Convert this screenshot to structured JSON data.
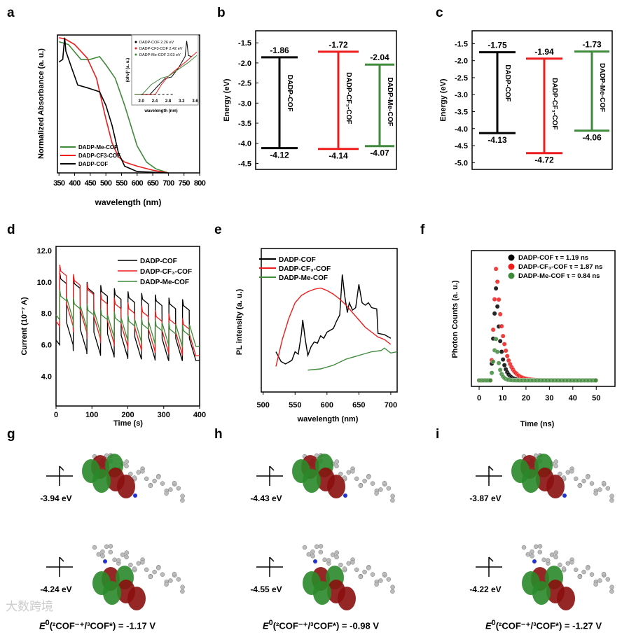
{
  "panels": {
    "a": "a",
    "b": "b",
    "c": "c",
    "d": "d",
    "e": "e",
    "f": "f",
    "g": "g",
    "h": "h",
    "i": "i"
  },
  "watermark": "大数跨境",
  "colors": {
    "black": "#000000",
    "red": "#ee1c1c",
    "green": "#3f8a3b"
  },
  "chart_data": [
    {
      "id": "a",
      "type": "line",
      "xlabel": "wavelength (nm)",
      "ylabel": "Normalized Absorbance (a. u.)",
      "xlim": [
        345,
        800
      ],
      "ylim": [
        0,
        1.02
      ],
      "xticks": [
        350,
        400,
        450,
        500,
        550,
        600,
        650,
        700,
        750,
        800
      ],
      "series": [
        {
          "name": "DADP-Me-COF",
          "color": "#3f8a3b",
          "points": [
            [
              350,
              0.97
            ],
            [
              380,
              0.95
            ],
            [
              420,
              0.84
            ],
            [
              450,
              0.84
            ],
            [
              480,
              0.86
            ],
            [
              500,
              0.8
            ],
            [
              530,
              0.7
            ],
            [
              560,
              0.5
            ],
            [
              580,
              0.35
            ],
            [
              600,
              0.2
            ],
            [
              630,
              0.08
            ],
            [
              660,
              0.03
            ],
            [
              700,
              0
            ]
          ]
        },
        {
          "name": "DADP-CF3-COF",
          "color": "#ee1c1c",
          "points": [
            [
              350,
              1.0
            ],
            [
              370,
              0.99
            ],
            [
              400,
              0.95
            ],
            [
              440,
              0.85
            ],
            [
              470,
              0.7
            ],
            [
              490,
              0.5
            ],
            [
              500,
              0.4
            ],
            [
              520,
              0.22
            ],
            [
              540,
              0.12
            ],
            [
              560,
              0.08
            ],
            [
              600,
              0.05
            ],
            [
              650,
              0.02
            ],
            [
              700,
              0
            ]
          ]
        },
        {
          "name": "DADP-COF",
          "color": "#000000",
          "points": [
            [
              350,
              0.82
            ],
            [
              362,
              0.84
            ],
            [
              368,
              1.0
            ],
            [
              372,
              0.9
            ],
            [
              390,
              0.78
            ],
            [
              410,
              0.65
            ],
            [
              440,
              0.63
            ],
            [
              480,
              0.6
            ],
            [
              500,
              0.5
            ],
            [
              520,
              0.35
            ],
            [
              540,
              0.15
            ],
            [
              560,
              0.05
            ],
            [
              600,
              0.01
            ],
            [
              700,
              0
            ]
          ]
        }
      ],
      "legend": [
        "DADP-Me-COF",
        "DADP-CF3-COF",
        "DADP-COF"
      ],
      "inset": {
        "xlabel": "wavelength (nm)",
        "ylabel": "(αhν)² (a. u.)",
        "xlim": [
          1.8,
          3.65
        ],
        "ylim": [
          0,
          1
        ],
        "xticks": [
          "2.0",
          "2.4",
          "2.8",
          "3.2",
          "3.6"
        ],
        "legend": [
          "DADP-COF 2.26 eV",
          "DADP-CF3-COF 2.42 eV",
          "DADP-Me-COF 2.03 eV"
        ],
        "series": [
          {
            "name": "DADP-COF",
            "color": "#000000",
            "points": [
              [
                1.8,
                0.05
              ],
              [
                2.26,
                0.05
              ],
              [
                2.5,
                0.2
              ],
              [
                2.7,
                0.32
              ],
              [
                2.9,
                0.35
              ],
              [
                3.1,
                0.5
              ],
              [
                3.3,
                0.7
              ],
              [
                3.35,
                0.97
              ],
              [
                3.4,
                0.72
              ],
              [
                3.5,
                0.7
              ]
            ]
          },
          {
            "name": "DADP-CF3-COF",
            "color": "#ee1c1c",
            "points": [
              [
                1.8,
                0.05
              ],
              [
                2.42,
                0.05
              ],
              [
                2.6,
                0.22
              ],
              [
                2.8,
                0.36
              ],
              [
                3.0,
                0.46
              ],
              [
                3.3,
                0.6
              ],
              [
                3.65,
                0.78
              ]
            ]
          },
          {
            "name": "DADP-Me-COF",
            "color": "#3f8a3b",
            "points": [
              [
                1.8,
                0.05
              ],
              [
                2.03,
                0.05
              ],
              [
                2.3,
                0.22
              ],
              [
                2.6,
                0.33
              ],
              [
                2.8,
                0.36
              ],
              [
                3.1,
                0.48
              ],
              [
                3.4,
                0.6
              ],
              [
                3.65,
                0.72
              ]
            ]
          }
        ],
        "extrap": [
          2.03,
          2.26,
          2.42
        ]
      }
    },
    {
      "id": "b",
      "type": "energy-levels",
      "ylabel": "Energy (eV)",
      "ylim": [
        -4.65,
        -1.2
      ],
      "yticks": [
        "-1.5",
        "-2.0",
        "-2.5",
        "-3.0",
        "-3.5",
        "-4.0",
        "-4.5"
      ],
      "levels": [
        {
          "name": "DADP-COF",
          "color": "#000000",
          "top": -1.86,
          "bottom": -4.12,
          "top_label": "-1.86",
          "bottom_label": "-4.12"
        },
        {
          "name": "DADP-CF₃-COF",
          "color": "#ee1c1c",
          "top": -1.72,
          "bottom": -4.14,
          "top_label": "-1.72",
          "bottom_label": "-4.14"
        },
        {
          "name": "DADP-Me-COF",
          "color": "#3f8a3b",
          "top": -2.04,
          "bottom": -4.07,
          "top_label": "-2.04",
          "bottom_label": "-4.07"
        }
      ]
    },
    {
      "id": "c",
      "type": "energy-levels",
      "ylabel": "Energy (eV)",
      "ylim": [
        -5.2,
        -1.12
      ],
      "yticks": [
        "-1.5",
        "-2.0",
        "-2.5",
        "-3.0",
        "-3.5",
        "-4.0",
        "-4.5",
        "-5.0"
      ],
      "levels": [
        {
          "name": "DADP-COF",
          "color": "#000000",
          "top": -1.75,
          "bottom": -4.13,
          "top_label": "-1.75",
          "bottom_label": "-4.13"
        },
        {
          "name": "DADP-CF₃-COF",
          "color": "#ee1c1c",
          "top": -1.94,
          "bottom": -4.72,
          "top_label": "-1.94",
          "bottom_label": "-4.72"
        },
        {
          "name": "DADP-Me-COF",
          "color": "#3f8a3b",
          "top": -1.73,
          "bottom": -4.06,
          "top_label": "-1.73",
          "bottom_label": "-4.06"
        }
      ]
    },
    {
      "id": "d",
      "type": "line",
      "xlabel": "Time (s)",
      "ylabel": "Current (10⁻⁷ A)",
      "xlim": [
        0,
        400
      ],
      "ylim": [
        2.1,
        12.27
      ],
      "xticks": [
        "0",
        "100",
        "200",
        "300",
        "400"
      ],
      "yticks": [
        "4.0",
        "6.0",
        "8.0",
        "10.0",
        "12.0"
      ],
      "cycle_period_s": 38,
      "light_on_s": 19,
      "start_s": 10,
      "series": [
        {
          "name": "DADP-COF",
          "color": "#000000",
          "on": [
            10.2,
            9.9,
            9.6,
            9.4,
            9.2,
            9.0,
            8.9,
            8.8,
            8.6,
            8.5
          ],
          "off": [
            6.0,
            5.6,
            5.4,
            5.3,
            5.2,
            5.1,
            5.1,
            5.0,
            5.0,
            5.0
          ]
        },
        {
          "name": "DADP-CF3-COF",
          "color": "#ee1c1c",
          "on": [
            10.7,
            10.1,
            9.5,
            8.9,
            8.6,
            8.3,
            8.1,
            7.8,
            7.6,
            7.3
          ],
          "off": [
            7.2,
            6.8,
            6.4,
            6.1,
            5.9,
            5.7,
            5.6,
            5.5,
            5.4,
            5.3
          ]
        },
        {
          "name": "DADP-Me-COF",
          "color": "#3f8a3b",
          "on": [
            9.1,
            8.6,
            8.2,
            7.9,
            7.7,
            7.5,
            7.3,
            7.2,
            7.0,
            6.9
          ],
          "off": [
            7.6,
            7.1,
            6.8,
            6.5,
            6.3,
            6.2,
            6.1,
            6.0,
            5.9,
            5.9
          ]
        }
      ],
      "legend": [
        "DADP-COF",
        "DADP-CF₃-COF",
        "DADP-Me-COF"
      ]
    },
    {
      "id": "e",
      "type": "line",
      "xlabel": "wavelength (nm)",
      "ylabel": "PL intensity (a. u.)",
      "xlim": [
        497,
        710
      ],
      "ylim": [
        0,
        1
      ],
      "xticks": [
        "500",
        "550",
        "600",
        "650",
        "700"
      ],
      "series": [
        {
          "name": "DADP-COF",
          "color": "#000000",
          "points": [
            [
              520,
              0.3
            ],
            [
              528,
              0.22
            ],
            [
              535,
              0.2
            ],
            [
              545,
              0.23
            ],
            [
              550,
              0.3
            ],
            [
              555,
              0.28
            ],
            [
              560,
              0.45
            ],
            [
              562,
              0.56
            ],
            [
              566,
              0.4
            ],
            [
              570,
              0.27
            ],
            [
              575,
              0.34
            ],
            [
              580,
              0.38
            ],
            [
              585,
              0.37
            ],
            [
              590,
              0.43
            ],
            [
              595,
              0.41
            ],
            [
              600,
              0.46
            ],
            [
              610,
              0.49
            ],
            [
              615,
              0.55
            ],
            [
              620,
              0.6
            ],
            [
              624,
              0.93
            ],
            [
              628,
              0.75
            ],
            [
              632,
              0.62
            ],
            [
              635,
              0.7
            ],
            [
              640,
              0.64
            ],
            [
              645,
              0.66
            ],
            [
              650,
              0.85
            ],
            [
              655,
              0.7
            ],
            [
              660,
              0.68
            ],
            [
              665,
              0.7
            ],
            [
              670,
              0.66
            ],
            [
              678,
              0.65
            ],
            [
              680,
              0.45
            ],
            [
              690,
              0.44
            ],
            [
              700,
              0.41
            ]
          ]
        },
        {
          "name": "DADP-CF3-COF",
          "color": "#ee1c1c",
          "points": [
            [
              520,
              0.18
            ],
            [
              530,
              0.4
            ],
            [
              540,
              0.57
            ],
            [
              550,
              0.7
            ],
            [
              560,
              0.76
            ],
            [
              570,
              0.79
            ],
            [
              580,
              0.81
            ],
            [
              590,
              0.82
            ],
            [
              600,
              0.8
            ],
            [
              610,
              0.77
            ],
            [
              620,
              0.73
            ],
            [
              630,
              0.68
            ],
            [
              640,
              0.62
            ],
            [
              650,
              0.56
            ],
            [
              660,
              0.5
            ],
            [
              670,
              0.46
            ],
            [
              680,
              0.42
            ],
            [
              690,
              0.4
            ],
            [
              700,
              0.36
            ]
          ]
        },
        {
          "name": "DADP-Me-COF",
          "color": "#3f8a3b",
          "points": [
            [
              570,
              0.15
            ],
            [
              590,
              0.16
            ],
            [
              610,
              0.19
            ],
            [
              630,
              0.24
            ],
            [
              650,
              0.27
            ],
            [
              670,
              0.3
            ],
            [
              685,
              0.31
            ],
            [
              690,
              0.33
            ],
            [
              700,
              0.29
            ],
            [
              710,
              0.3
            ]
          ]
        }
      ],
      "legend": [
        "DADP-COF",
        "DADP-CF₃-COF",
        "DADP-Me-COF"
      ]
    },
    {
      "id": "f",
      "type": "scatter",
      "xlabel": "Time (ns)",
      "ylabel": "Photon Counts (a. u.)",
      "xlim": [
        -3.3,
        58
      ],
      "ylim": [
        0,
        1
      ],
      "xticks": [
        "0",
        "10",
        "20",
        "30",
        "40",
        "50"
      ],
      "series": [
        {
          "name": "DADP-COF",
          "tau": "τ = 1.19 ns",
          "color": "#000000",
          "peak": 0.8,
          "peak_t": 7.3,
          "decay_ns": 1.9
        },
        {
          "name": "DADP-CF3-COF",
          "tau": "τ = 1.87 ns",
          "color": "#ee1c1c",
          "peak": 0.97,
          "peak_t": 7.3,
          "decay_ns": 3.0
        },
        {
          "name": "DADP-Me-COF",
          "tau": "τ = 0.84 ns",
          "color": "#3f8a3b",
          "peak": 0.36,
          "peak_t": 7.3,
          "decay_ns": 1.2
        }
      ],
      "legend": [
        "DADP-COF τ = 1.19 ns",
        "DADP-CF₃-COF τ = 1.87 ns",
        "DADP-Me-COF τ = 0.84 ns"
      ]
    }
  ],
  "orbitals": {
    "g": {
      "upper": "-3.94 eV",
      "lower": "-4.24 eV",
      "eq_pre": "E",
      "eq_sup": "0",
      "eq_rest": "(²COF⁻⁺/³COF*) = -1.17 V"
    },
    "h": {
      "upper": "-4.43 eV",
      "lower": "-4.55 eV",
      "eq_pre": "E",
      "eq_sup": "0",
      "eq_rest": "(²COF⁻⁺/³COF*) = -0.98 V"
    },
    "i": {
      "upper": "-3.87 eV",
      "lower": "-4.22 eV",
      "eq_pre": "E",
      "eq_sup": "0",
      "eq_rest": "(²COF⁻⁺/³COF*) = -1.27 V"
    }
  }
}
